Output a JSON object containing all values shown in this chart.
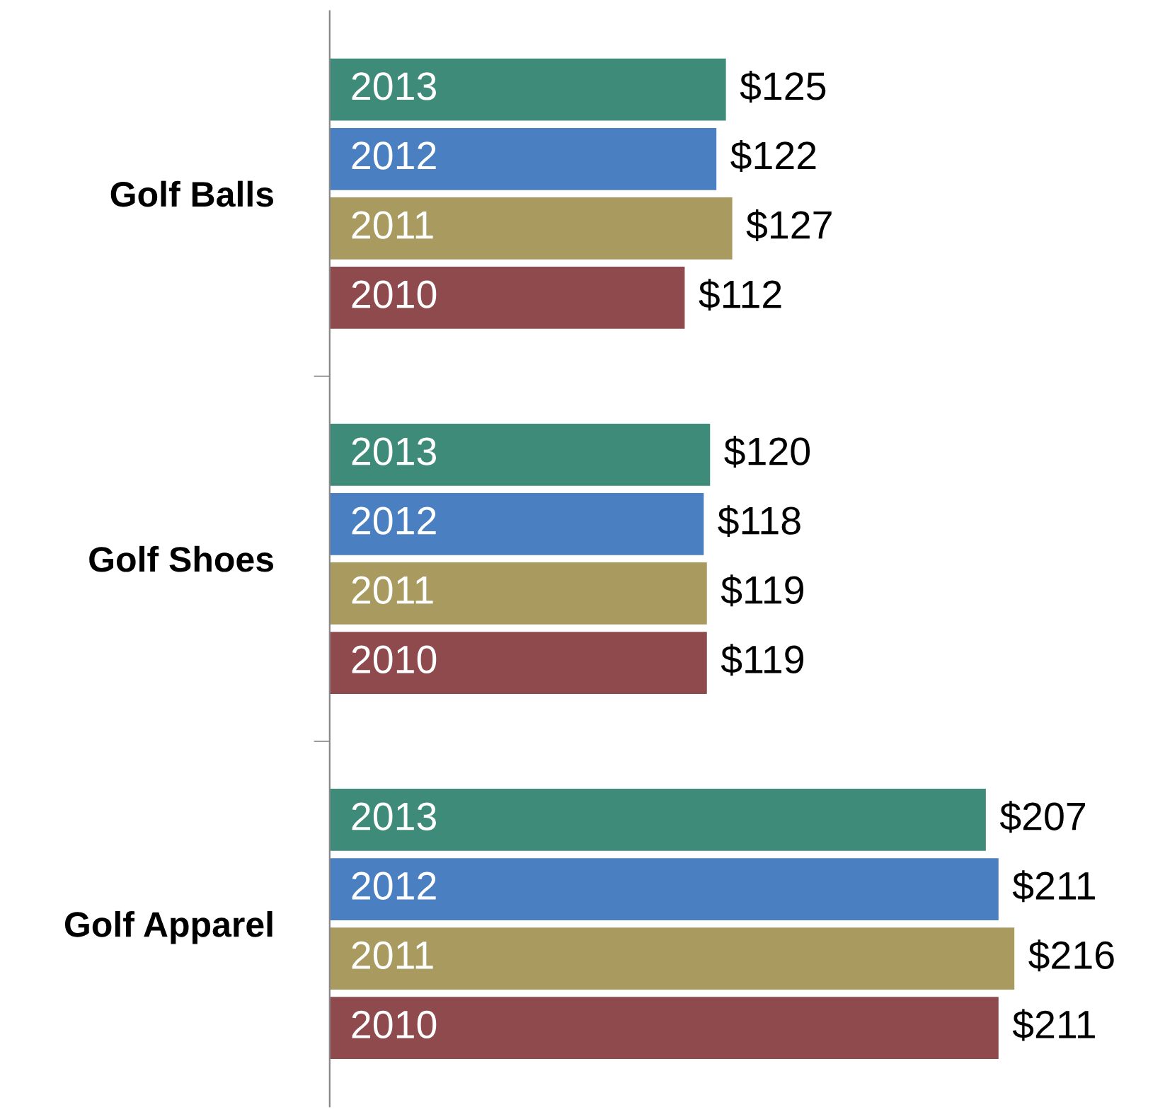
{
  "chart_data": {
    "type": "bar",
    "orientation": "horizontal",
    "categories": [
      "Golf Balls",
      "Golf Shoes",
      "Golf Apparel"
    ],
    "relative": false,
    "legend": false,
    "grid": false,
    "series": [
      {
        "name": "2013",
        "color": "#3e8b79",
        "values": [
          125,
          120,
          207
        ],
        "value_labels": [
          "$125",
          "$120",
          "$207"
        ]
      },
      {
        "name": "2012",
        "color": "#4a80c2",
        "values": [
          122,
          118,
          211
        ],
        "value_labels": [
          "$122",
          "$118",
          "$211"
        ]
      },
      {
        "name": "2011",
        "color": "#a99b5f",
        "values": [
          127,
          119,
          216
        ],
        "value_labels": [
          "$127",
          "$119",
          "$216"
        ]
      },
      {
        "name": "2010",
        "color": "#8f4a4d",
        "values": [
          112,
          119,
          211
        ],
        "value_labels": [
          "$112",
          "$119",
          "$211"
        ]
      }
    ]
  }
}
